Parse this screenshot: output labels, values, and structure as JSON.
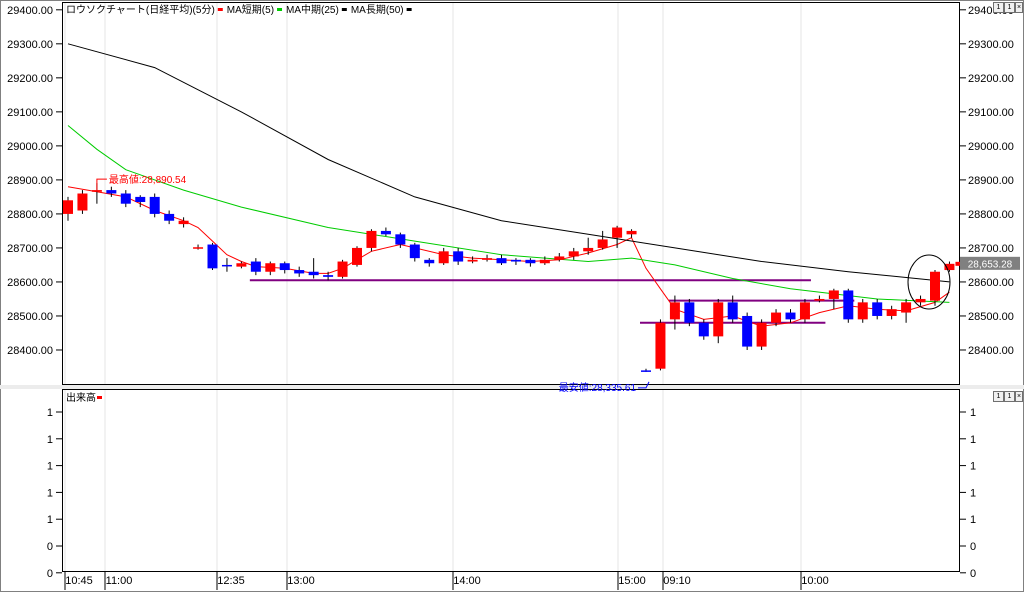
{
  "main_panel": {
    "legend": [
      {
        "label": "ロウソクチャート(日経平均)(5分)",
        "color": "#ff0000"
      },
      {
        "label": "MA短期(5)",
        "color": "#ff0000"
      },
      {
        "label": "MA中期(25)",
        "color": "#00cc00"
      },
      {
        "label": "MA長期(50)",
        "color": "#000000"
      }
    ],
    "current_price_label": "28,653.28",
    "high_annotation": "最高値:28,890.54",
    "low_annotation": "最安値:28,335.61",
    "window_controls": [
      "1",
      "1",
      "×"
    ]
  },
  "volume_panel": {
    "legend_label": "出来高",
    "legend_color": "#ff0000",
    "window_controls": [
      "1",
      "1",
      "×"
    ]
  },
  "colors": {
    "up": "#ff0000",
    "down": "#0000ff",
    "ma_short": "#ff0000",
    "ma_mid": "#00cc00",
    "ma_long": "#000000",
    "support_line": "#800080",
    "price_tag": "#808080"
  },
  "chart_data": [
    {
      "type": "candlestick",
      "title": "ロウソクチャート(日経平均)(5分)",
      "ylim": [
        28300,
        29420
      ],
      "y_ticks": [
        "29400.00",
        "29300.00",
        "29200.00",
        "29100.00",
        "29000.00",
        "28900.00",
        "28800.00",
        "28700.00",
        "28600.00",
        "28500.00",
        "28400.00"
      ],
      "x_tick_labels": [
        "10:45",
        "11:00",
        "12:35",
        "13:00",
        "14:00",
        "15:00",
        "09:10",
        "10:00"
      ],
      "candles": [
        {
          "o": 28800,
          "c": 28840,
          "h": 28850,
          "l": 28780
        },
        {
          "o": 28810,
          "c": 28860,
          "h": 28870,
          "l": 28800
        },
        {
          "o": 28865,
          "c": 28870,
          "h": 28890.54,
          "l": 28830
        },
        {
          "o": 28870,
          "c": 28860,
          "h": 28880,
          "l": 28850
        },
        {
          "o": 28860,
          "c": 28830,
          "h": 28870,
          "l": 28820
        },
        {
          "o": 28850,
          "c": 28835,
          "h": 28855,
          "l": 28820
        },
        {
          "o": 28850,
          "c": 28800,
          "h": 28860,
          "l": 28790
        },
        {
          "o": 28800,
          "c": 28780,
          "h": 28810,
          "l": 28770
        },
        {
          "o": 28770,
          "c": 28780,
          "h": 28790,
          "l": 28760
        },
        {
          "o": 28700,
          "c": 28702,
          "h": 28710,
          "l": 28695
        },
        {
          "o": 28710,
          "c": 28640,
          "h": 28715,
          "l": 28635
        },
        {
          "o": 28650,
          "c": 28648,
          "h": 28670,
          "l": 28630
        },
        {
          "o": 28645,
          "c": 28655,
          "h": 28660,
          "l": 28640
        },
        {
          "o": 28660,
          "c": 28630,
          "h": 28670,
          "l": 28620
        },
        {
          "o": 28630,
          "c": 28655,
          "h": 28660,
          "l": 28620
        },
        {
          "o": 28655,
          "c": 28635,
          "h": 28660,
          "l": 28625
        },
        {
          "o": 28635,
          "c": 28625,
          "h": 28645,
          "l": 28615
        },
        {
          "o": 28630,
          "c": 28620,
          "h": 28670,
          "l": 28610
        },
        {
          "o": 28620,
          "c": 28615,
          "h": 28630,
          "l": 28605
        },
        {
          "o": 28615,
          "c": 28660,
          "h": 28665,
          "l": 28610
        },
        {
          "o": 28650,
          "c": 28700,
          "h": 28705,
          "l": 28645
        },
        {
          "o": 28700,
          "c": 28750,
          "h": 28755,
          "l": 28690
        },
        {
          "o": 28750,
          "c": 28740,
          "h": 28760,
          "l": 28735
        },
        {
          "o": 28740,
          "c": 28710,
          "h": 28745,
          "l": 28700
        },
        {
          "o": 28710,
          "c": 28670,
          "h": 28715,
          "l": 28660
        },
        {
          "o": 28665,
          "c": 28655,
          "h": 28670,
          "l": 28645
        },
        {
          "o": 28655,
          "c": 28690,
          "h": 28700,
          "l": 28650
        },
        {
          "o": 28690,
          "c": 28660,
          "h": 28700,
          "l": 28650
        },
        {
          "o": 28660,
          "c": 28665,
          "h": 28675,
          "l": 28655
        },
        {
          "o": 28665,
          "c": 28670,
          "h": 28680,
          "l": 28660
        },
        {
          "o": 28670,
          "c": 28655,
          "h": 28680,
          "l": 28650
        },
        {
          "o": 28665,
          "c": 28660,
          "h": 28670,
          "l": 28650
        },
        {
          "o": 28665,
          "c": 28655,
          "h": 28670,
          "l": 28645
        },
        {
          "o": 28655,
          "c": 28665,
          "h": 28675,
          "l": 28650
        },
        {
          "o": 28665,
          "c": 28675,
          "h": 28685,
          "l": 28660
        },
        {
          "o": 28675,
          "c": 28690,
          "h": 28700,
          "l": 28665
        },
        {
          "o": 28690,
          "c": 28700,
          "h": 28730,
          "l": 28680
        },
        {
          "o": 28700,
          "c": 28725,
          "h": 28750,
          "l": 28695
        },
        {
          "o": 28730,
          "c": 28760,
          "h": 28765,
          "l": 28700
        },
        {
          "o": 28740,
          "c": 28750,
          "h": 28755,
          "l": 28730
        },
        {
          "o": 28340,
          "c": 28335.61,
          "h": 28345,
          "l": 28335.61
        },
        {
          "o": 28345,
          "c": 28480,
          "h": 28490,
          "l": 28340
        },
        {
          "o": 28490,
          "c": 28540,
          "h": 28560,
          "l": 28460
        },
        {
          "o": 28540,
          "c": 28480,
          "h": 28550,
          "l": 28470
        },
        {
          "o": 28480,
          "c": 28440,
          "h": 28490,
          "l": 28430
        },
        {
          "o": 28440,
          "c": 28540,
          "h": 28550,
          "l": 28420
        },
        {
          "o": 28540,
          "c": 28490,
          "h": 28560,
          "l": 28480
        },
        {
          "o": 28500,
          "c": 28410,
          "h": 28510,
          "l": 28400
        },
        {
          "o": 28410,
          "c": 28480,
          "h": 28490,
          "l": 28400
        },
        {
          "o": 28480,
          "c": 28510,
          "h": 28520,
          "l": 28470
        },
        {
          "o": 28510,
          "c": 28490,
          "h": 28520,
          "l": 28480
        },
        {
          "o": 28490,
          "c": 28540,
          "h": 28550,
          "l": 28480
        },
        {
          "o": 28545,
          "c": 28550,
          "h": 28560,
          "l": 28540
        },
        {
          "o": 28550,
          "c": 28575,
          "h": 28580,
          "l": 28520
        },
        {
          "o": 28575,
          "c": 28490,
          "h": 28580,
          "l": 28480
        },
        {
          "o": 28490,
          "c": 28540,
          "h": 28550,
          "l": 28480
        },
        {
          "o": 28540,
          "c": 28500,
          "h": 28550,
          "l": 28490
        },
        {
          "o": 28500,
          "c": 28520,
          "h": 28530,
          "l": 28490
        },
        {
          "o": 28510,
          "c": 28540,
          "h": 28550,
          "l": 28480
        },
        {
          "o": 28540,
          "c": 28550,
          "h": 28560,
          "l": 28530
        },
        {
          "o": 28545,
          "c": 28630,
          "h": 28635,
          "l": 28530
        },
        {
          "o": 28635,
          "c": 28653.28,
          "h": 28660,
          "l": 28630
        }
      ],
      "series": [
        {
          "name": "MA短期(5)",
          "points": [
            [
              0,
              28880
            ],
            [
              2,
              28865
            ],
            [
              4,
              28850
            ],
            [
              6,
              28810
            ],
            [
              8,
              28780
            ],
            [
              9,
              28760
            ],
            [
              10,
              28720
            ],
            [
              11,
              28680
            ],
            [
              12,
              28660
            ],
            [
              13,
              28645
            ],
            [
              15,
              28640
            ],
            [
              17,
              28625
            ],
            [
              18,
              28625
            ],
            [
              19,
              28640
            ],
            [
              20,
              28665
            ],
            [
              21,
              28690
            ],
            [
              23,
              28710
            ],
            [
              24,
              28700
            ],
            [
              26,
              28680
            ],
            [
              28,
              28670
            ],
            [
              30,
              28665
            ],
            [
              32,
              28660
            ],
            [
              34,
              28665
            ],
            [
              36,
              28685
            ],
            [
              38,
              28710
            ],
            [
              39,
              28730
            ],
            [
              40,
              28640
            ],
            [
              41,
              28580
            ],
            [
              42,
              28520
            ],
            [
              44,
              28490
            ],
            [
              46,
              28500
            ],
            [
              48,
              28470
            ],
            [
              50,
              28480
            ],
            [
              52,
              28510
            ],
            [
              54,
              28530
            ],
            [
              56,
              28520
            ],
            [
              58,
              28515
            ],
            [
              60,
              28540
            ],
            [
              61,
              28570
            ]
          ]
        },
        {
          "name": "MA中期(25)",
          "points": [
            [
              0,
              29060
            ],
            [
              2,
              28990
            ],
            [
              4,
              28930
            ],
            [
              8,
              28870
            ],
            [
              12,
              28820
            ],
            [
              18,
              28760
            ],
            [
              24,
              28720
            ],
            [
              30,
              28680
            ],
            [
              36,
              28660
            ],
            [
              39,
              28670
            ],
            [
              42,
              28650
            ],
            [
              46,
              28610
            ],
            [
              50,
              28580
            ],
            [
              56,
              28550
            ],
            [
              61,
              28540
            ]
          ]
        },
        {
          "name": "MA長期(50)",
          "points": [
            [
              0,
              29300
            ],
            [
              6,
              29230
            ],
            [
              12,
              29100
            ],
            [
              18,
              28960
            ],
            [
              24,
              28850
            ],
            [
              30,
              28780
            ],
            [
              36,
              28740
            ],
            [
              42,
              28700
            ],
            [
              48,
              28660
            ],
            [
              54,
              28630
            ],
            [
              61,
              28600
            ]
          ]
        }
      ],
      "support_lines": [
        {
          "from": 13,
          "to": 51,
          "y": 28605
        },
        {
          "from": 40,
          "to": 52,
          "y": 28480
        },
        {
          "from": 42,
          "to": 54,
          "y": 28545
        }
      ]
    },
    {
      "type": "bar",
      "title": "出来高",
      "y_ticks": [
        "1",
        "1",
        "1",
        "1",
        "1",
        "0",
        "0",
        "0"
      ],
      "values": []
    }
  ]
}
